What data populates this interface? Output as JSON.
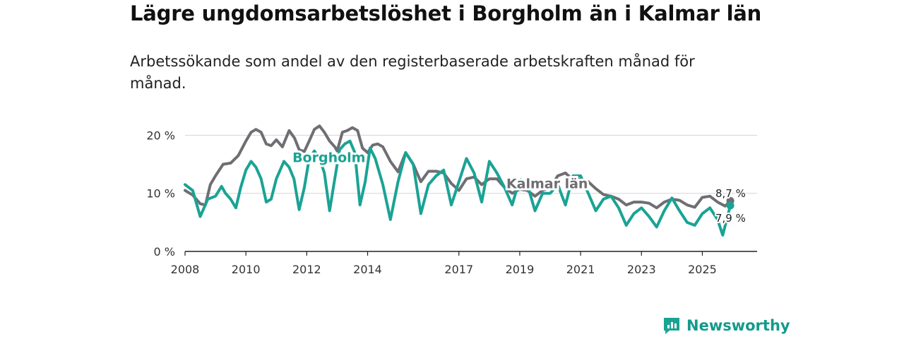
{
  "title": "Lägre ungdomsarbetslöshet i Borgholm än i Kalmar län",
  "subtitle": "Arbetssökande som andel av den registerbaserade arbetskraften månad för månad.",
  "brand": "Newsworthy",
  "colors": {
    "borgholm": "#1aa394",
    "kalmar": "#6e6e73",
    "grid": "#d6d6d6",
    "axis": "#222222"
  },
  "chart_data": {
    "type": "line",
    "title": "Lägre ungdomsarbetslöshet i Borgholm än i Kalmar län",
    "xlabel": "",
    "ylabel": "",
    "xlim": [
      2008,
      2026.8
    ],
    "ylim": [
      0,
      22
    ],
    "yticks": [
      {
        "value": 0,
        "label": "0 %"
      },
      {
        "value": 10,
        "label": "10 %"
      },
      {
        "value": 20,
        "label": "20 %"
      }
    ],
    "xticks": [
      {
        "value": 2008,
        "label": "2008"
      },
      {
        "value": 2010,
        "label": "2010"
      },
      {
        "value": 2012,
        "label": "2012"
      },
      {
        "value": 2014,
        "label": "2014"
      },
      {
        "value": 2017,
        "label": "2017"
      },
      {
        "value": 2019,
        "label": "2019"
      },
      {
        "value": 2021,
        "label": "2021"
      },
      {
        "value": 2023,
        "label": "2023"
      },
      {
        "value": 2025,
        "label": "2025"
      }
    ],
    "series": [
      {
        "name": "Kalmar län",
        "label": "Kalmar län",
        "label_at": [
          2019.9,
          10.9
        ],
        "end_label": "8,7 %",
        "points": [
          [
            2008.0,
            10.5
          ],
          [
            2008.25,
            9.7
          ],
          [
            2008.5,
            8.2
          ],
          [
            2008.67,
            8.0
          ],
          [
            2008.83,
            11.5
          ],
          [
            2009.0,
            13.0
          ],
          [
            2009.25,
            15.0
          ],
          [
            2009.5,
            15.2
          ],
          [
            2009.75,
            16.5
          ],
          [
            2010.0,
            19.0
          ],
          [
            2010.17,
            20.5
          ],
          [
            2010.33,
            21.0
          ],
          [
            2010.5,
            20.5
          ],
          [
            2010.67,
            18.5
          ],
          [
            2010.83,
            18.2
          ],
          [
            2011.0,
            19.2
          ],
          [
            2011.2,
            18.0
          ],
          [
            2011.42,
            20.8
          ],
          [
            2011.6,
            19.5
          ],
          [
            2011.75,
            17.5
          ],
          [
            2011.92,
            17.2
          ],
          [
            2012.08,
            19.0
          ],
          [
            2012.25,
            21.0
          ],
          [
            2012.42,
            21.6
          ],
          [
            2012.58,
            20.5
          ],
          [
            2012.75,
            19.0
          ],
          [
            2012.92,
            18.0
          ],
          [
            2013.0,
            17.3
          ],
          [
            2013.17,
            20.5
          ],
          [
            2013.33,
            20.8
          ],
          [
            2013.5,
            21.3
          ],
          [
            2013.67,
            20.8
          ],
          [
            2013.83,
            17.8
          ],
          [
            2014.0,
            17.0
          ],
          [
            2014.17,
            18.3
          ],
          [
            2014.33,
            18.5
          ],
          [
            2014.5,
            18.0
          ],
          [
            2014.75,
            15.5
          ],
          [
            2015.0,
            13.7
          ],
          [
            2015.25,
            17.0
          ],
          [
            2015.5,
            15.0
          ],
          [
            2015.75,
            12.0
          ],
          [
            2016.0,
            13.8
          ],
          [
            2016.25,
            13.8
          ],
          [
            2016.5,
            13.5
          ],
          [
            2016.75,
            11.7
          ],
          [
            2017.0,
            10.5
          ],
          [
            2017.25,
            12.5
          ],
          [
            2017.5,
            12.8
          ],
          [
            2017.75,
            11.5
          ],
          [
            2018.0,
            12.5
          ],
          [
            2018.25,
            12.5
          ],
          [
            2018.5,
            11.0
          ],
          [
            2018.75,
            10.0
          ],
          [
            2019.0,
            10.7
          ],
          [
            2019.25,
            10.5
          ],
          [
            2019.5,
            9.5
          ],
          [
            2019.75,
            10.5
          ],
          [
            2020.0,
            11.0
          ],
          [
            2020.25,
            13.0
          ],
          [
            2020.5,
            13.5
          ],
          [
            2020.75,
            12.3
          ],
          [
            2021.0,
            12.5
          ],
          [
            2021.25,
            12.0
          ],
          [
            2021.5,
            10.8
          ],
          [
            2021.75,
            9.8
          ],
          [
            2022.0,
            9.5
          ],
          [
            2022.25,
            9.0
          ],
          [
            2022.5,
            8.0
          ],
          [
            2022.75,
            8.5
          ],
          [
            2023.0,
            8.5
          ],
          [
            2023.25,
            8.3
          ],
          [
            2023.5,
            7.5
          ],
          [
            2023.75,
            8.5
          ],
          [
            2024.0,
            9.0
          ],
          [
            2024.25,
            8.8
          ],
          [
            2024.5,
            8.0
          ],
          [
            2024.75,
            7.6
          ],
          [
            2025.0,
            9.3
          ],
          [
            2025.25,
            9.5
          ],
          [
            2025.5,
            8.5
          ],
          [
            2025.75,
            7.8
          ],
          [
            2025.92,
            8.7
          ]
        ]
      },
      {
        "name": "Borgholm",
        "label": "Borgholm",
        "label_at": [
          2012.73,
          15.4
        ],
        "end_label": "7,9 %",
        "points": [
          [
            2008.0,
            11.5
          ],
          [
            2008.25,
            10.5
          ],
          [
            2008.5,
            6.0
          ],
          [
            2008.75,
            9.0
          ],
          [
            2009.0,
            9.5
          ],
          [
            2009.2,
            11.2
          ],
          [
            2009.33,
            10.0
          ],
          [
            2009.5,
            9.0
          ],
          [
            2009.67,
            7.5
          ],
          [
            2009.83,
            11.0
          ],
          [
            2010.0,
            14.0
          ],
          [
            2010.17,
            15.5
          ],
          [
            2010.33,
            14.5
          ],
          [
            2010.5,
            12.5
          ],
          [
            2010.67,
            8.5
          ],
          [
            2010.83,
            9.0
          ],
          [
            2011.0,
            12.5
          ],
          [
            2011.25,
            15.5
          ],
          [
            2011.42,
            14.5
          ],
          [
            2011.58,
            12.5
          ],
          [
            2011.75,
            7.2
          ],
          [
            2011.92,
            11.0
          ],
          [
            2012.08,
            16.0
          ],
          [
            2012.25,
            17.3
          ],
          [
            2012.42,
            16.0
          ],
          [
            2012.58,
            13.5
          ],
          [
            2012.75,
            7.0
          ],
          [
            2012.92,
            12.5
          ],
          [
            2013.08,
            17.5
          ],
          [
            2013.25,
            18.5
          ],
          [
            2013.42,
            19.0
          ],
          [
            2013.58,
            17.0
          ],
          [
            2013.75,
            8.0
          ],
          [
            2013.92,
            12.0
          ],
          [
            2014.08,
            17.8
          ],
          [
            2014.25,
            16.0
          ],
          [
            2014.5,
            11.5
          ],
          [
            2014.75,
            5.5
          ],
          [
            2015.0,
            12.0
          ],
          [
            2015.25,
            17.0
          ],
          [
            2015.5,
            15.0
          ],
          [
            2015.75,
            6.5
          ],
          [
            2016.0,
            11.5
          ],
          [
            2016.25,
            13.0
          ],
          [
            2016.5,
            14.0
          ],
          [
            2016.75,
            8.0
          ],
          [
            2017.0,
            12.0
          ],
          [
            2017.25,
            16.0
          ],
          [
            2017.5,
            13.5
          ],
          [
            2017.75,
            8.5
          ],
          [
            2018.0,
            15.5
          ],
          [
            2018.25,
            13.5
          ],
          [
            2018.5,
            11.0
          ],
          [
            2018.75,
            8.0
          ],
          [
            2019.0,
            12.5
          ],
          [
            2019.25,
            11.5
          ],
          [
            2019.5,
            7.0
          ],
          [
            2019.75,
            10.0
          ],
          [
            2020.0,
            10.0
          ],
          [
            2020.25,
            11.5
          ],
          [
            2020.5,
            8.0
          ],
          [
            2020.75,
            13.0
          ],
          [
            2021.0,
            13.0
          ],
          [
            2021.25,
            10.0
          ],
          [
            2021.5,
            7.0
          ],
          [
            2021.75,
            9.0
          ],
          [
            2022.0,
            9.5
          ],
          [
            2022.25,
            7.5
          ],
          [
            2022.5,
            4.5
          ],
          [
            2022.75,
            6.5
          ],
          [
            2023.0,
            7.5
          ],
          [
            2023.25,
            6.0
          ],
          [
            2023.5,
            4.2
          ],
          [
            2023.75,
            7.0
          ],
          [
            2024.0,
            9.2
          ],
          [
            2024.25,
            7.0
          ],
          [
            2024.5,
            5.0
          ],
          [
            2024.75,
            4.5
          ],
          [
            2025.0,
            6.5
          ],
          [
            2025.25,
            7.5
          ],
          [
            2025.5,
            5.5
          ],
          [
            2025.67,
            2.8
          ],
          [
            2025.92,
            7.9
          ]
        ]
      }
    ]
  }
}
